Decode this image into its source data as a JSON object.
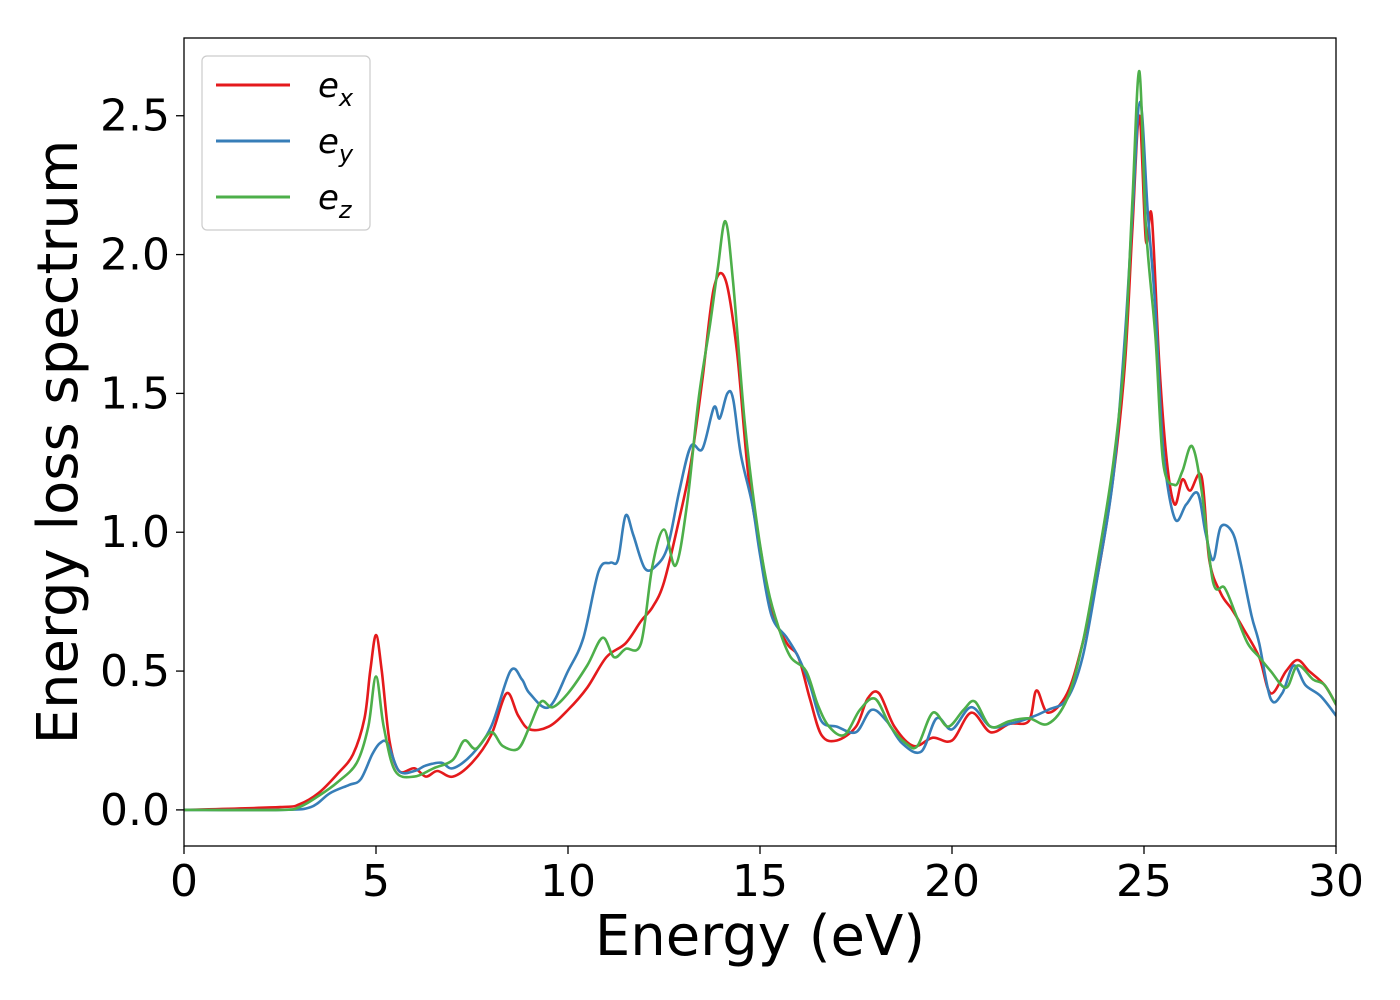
{
  "chart_data": {
    "type": "line",
    "title": "",
    "xlabel": "Energy (eV)",
    "ylabel": "Energy loss spectrum",
    "xlim": [
      0,
      30
    ],
    "ylim": [
      -0.13,
      2.78
    ],
    "xticks": [
      0,
      5,
      10,
      15,
      20,
      25,
      30
    ],
    "xtick_labels": [
      "0",
      "5",
      "10",
      "15",
      "20",
      "25",
      "30"
    ],
    "yticks": [
      0.0,
      0.5,
      1.0,
      1.5,
      2.0,
      2.5
    ],
    "ytick_labels": [
      "0.0",
      "0.5",
      "1.0",
      "1.5",
      "2.0",
      "2.5"
    ],
    "grid": false,
    "legend_position": "top-left",
    "series": [
      {
        "name": "e_x",
        "legend": {
          "base": "e",
          "sub": "x"
        },
        "color": "#e41a1c",
        "points": [
          [
            0,
            0
          ],
          [
            2.5,
            0.01
          ],
          [
            3.0,
            0.02
          ],
          [
            3.5,
            0.06
          ],
          [
            4.0,
            0.13
          ],
          [
            4.4,
            0.2
          ],
          [
            4.7,
            0.33
          ],
          [
            4.85,
            0.5
          ],
          [
            5.0,
            0.63
          ],
          [
            5.15,
            0.5
          ],
          [
            5.35,
            0.25
          ],
          [
            5.6,
            0.14
          ],
          [
            6.0,
            0.15
          ],
          [
            6.3,
            0.12
          ],
          [
            6.6,
            0.14
          ],
          [
            7.0,
            0.12
          ],
          [
            7.5,
            0.17
          ],
          [
            8.0,
            0.27
          ],
          [
            8.4,
            0.42
          ],
          [
            8.7,
            0.34
          ],
          [
            9.0,
            0.29
          ],
          [
            9.5,
            0.3
          ],
          [
            10.0,
            0.36
          ],
          [
            10.5,
            0.44
          ],
          [
            11.0,
            0.55
          ],
          [
            11.5,
            0.6
          ],
          [
            11.9,
            0.68
          ],
          [
            12.2,
            0.73
          ],
          [
            12.5,
            0.82
          ],
          [
            12.9,
            1.05
          ],
          [
            13.2,
            1.25
          ],
          [
            13.5,
            1.55
          ],
          [
            13.8,
            1.88
          ],
          [
            14.1,
            1.91
          ],
          [
            14.4,
            1.65
          ],
          [
            14.7,
            1.2
          ],
          [
            15.0,
            0.95
          ],
          [
            15.3,
            0.72
          ],
          [
            15.7,
            0.6
          ],
          [
            16.0,
            0.55
          ],
          [
            16.3,
            0.4
          ],
          [
            16.6,
            0.27
          ],
          [
            17.0,
            0.25
          ],
          [
            17.5,
            0.3
          ],
          [
            17.8,
            0.4
          ],
          [
            18.1,
            0.42
          ],
          [
            18.5,
            0.3
          ],
          [
            19.0,
            0.23
          ],
          [
            19.5,
            0.26
          ],
          [
            20.0,
            0.25
          ],
          [
            20.5,
            0.35
          ],
          [
            21.0,
            0.28
          ],
          [
            21.5,
            0.31
          ],
          [
            22.0,
            0.32
          ],
          [
            22.2,
            0.43
          ],
          [
            22.5,
            0.35
          ],
          [
            23.0,
            0.42
          ],
          [
            23.4,
            0.6
          ],
          [
            23.8,
            0.85
          ],
          [
            24.2,
            1.2
          ],
          [
            24.5,
            1.6
          ],
          [
            24.7,
            2.1
          ],
          [
            24.88,
            2.5
          ],
          [
            25.05,
            2.05
          ],
          [
            25.2,
            2.14
          ],
          [
            25.4,
            1.6
          ],
          [
            25.6,
            1.25
          ],
          [
            25.8,
            1.1
          ],
          [
            26.0,
            1.19
          ],
          [
            26.2,
            1.15
          ],
          [
            26.5,
            1.2
          ],
          [
            26.7,
            0.9
          ],
          [
            27.0,
            0.78
          ],
          [
            27.3,
            0.72
          ],
          [
            27.6,
            0.65
          ],
          [
            28.0,
            0.55
          ],
          [
            28.3,
            0.42
          ],
          [
            28.7,
            0.5
          ],
          [
            29.0,
            0.54
          ],
          [
            29.3,
            0.5
          ],
          [
            29.7,
            0.45
          ],
          [
            30.0,
            0.38
          ]
        ]
      },
      {
        "name": "e_y",
        "legend": {
          "base": "e",
          "sub": "y"
        },
        "color": "#377eb8",
        "points": [
          [
            0,
            0
          ],
          [
            2.5,
            0.0
          ],
          [
            3.3,
            0.01
          ],
          [
            3.8,
            0.06
          ],
          [
            4.3,
            0.09
          ],
          [
            4.6,
            0.11
          ],
          [
            4.9,
            0.2
          ],
          [
            5.1,
            0.24
          ],
          [
            5.3,
            0.24
          ],
          [
            5.6,
            0.14
          ],
          [
            6.0,
            0.14
          ],
          [
            6.3,
            0.16
          ],
          [
            6.7,
            0.17
          ],
          [
            7.0,
            0.15
          ],
          [
            7.5,
            0.2
          ],
          [
            8.0,
            0.3
          ],
          [
            8.5,
            0.5
          ],
          [
            8.8,
            0.47
          ],
          [
            9.0,
            0.42
          ],
          [
            9.5,
            0.37
          ],
          [
            10.0,
            0.5
          ],
          [
            10.4,
            0.62
          ],
          [
            10.8,
            0.86
          ],
          [
            11.1,
            0.89
          ],
          [
            11.3,
            0.9
          ],
          [
            11.5,
            1.06
          ],
          [
            11.7,
            0.99
          ],
          [
            12.0,
            0.87
          ],
          [
            12.3,
            0.88
          ],
          [
            12.6,
            0.95
          ],
          [
            12.9,
            1.15
          ],
          [
            13.2,
            1.31
          ],
          [
            13.5,
            1.3
          ],
          [
            13.8,
            1.45
          ],
          [
            13.95,
            1.41
          ],
          [
            14.15,
            1.5
          ],
          [
            14.3,
            1.48
          ],
          [
            14.5,
            1.28
          ],
          [
            14.8,
            1.1
          ],
          [
            15.0,
            0.92
          ],
          [
            15.3,
            0.7
          ],
          [
            15.7,
            0.62
          ],
          [
            16.0,
            0.55
          ],
          [
            16.3,
            0.45
          ],
          [
            16.6,
            0.32
          ],
          [
            17.0,
            0.3
          ],
          [
            17.5,
            0.28
          ],
          [
            17.9,
            0.36
          ],
          [
            18.3,
            0.32
          ],
          [
            18.7,
            0.24
          ],
          [
            19.2,
            0.21
          ],
          [
            19.6,
            0.33
          ],
          [
            20.0,
            0.29
          ],
          [
            20.5,
            0.37
          ],
          [
            21.0,
            0.3
          ],
          [
            21.5,
            0.31
          ],
          [
            22.0,
            0.33
          ],
          [
            22.5,
            0.36
          ],
          [
            23.0,
            0.4
          ],
          [
            23.4,
            0.55
          ],
          [
            23.8,
            0.85
          ],
          [
            24.2,
            1.2
          ],
          [
            24.5,
            1.7
          ],
          [
            24.7,
            2.15
          ],
          [
            24.9,
            2.55
          ],
          [
            25.1,
            2.15
          ],
          [
            25.3,
            1.8
          ],
          [
            25.5,
            1.3
          ],
          [
            25.8,
            1.05
          ],
          [
            26.1,
            1.1
          ],
          [
            26.4,
            1.14
          ],
          [
            26.6,
            1.0
          ],
          [
            26.8,
            0.9
          ],
          [
            27.0,
            1.02
          ],
          [
            27.3,
            1.0
          ],
          [
            27.5,
            0.9
          ],
          [
            27.8,
            0.7
          ],
          [
            28.0,
            0.6
          ],
          [
            28.3,
            0.4
          ],
          [
            28.6,
            0.42
          ],
          [
            28.9,
            0.52
          ],
          [
            29.2,
            0.45
          ],
          [
            29.6,
            0.41
          ],
          [
            30.0,
            0.34
          ]
        ]
      },
      {
        "name": "e_z",
        "legend": {
          "base": "e",
          "sub": "z"
        },
        "color": "#4daf4a",
        "points": [
          [
            0,
            0
          ],
          [
            2.5,
            0.0
          ],
          [
            3.0,
            0.01
          ],
          [
            3.5,
            0.05
          ],
          [
            4.0,
            0.1
          ],
          [
            4.5,
            0.17
          ],
          [
            4.8,
            0.3
          ],
          [
            5.0,
            0.48
          ],
          [
            5.2,
            0.3
          ],
          [
            5.5,
            0.14
          ],
          [
            6.0,
            0.12
          ],
          [
            6.5,
            0.15
          ],
          [
            7.0,
            0.18
          ],
          [
            7.3,
            0.25
          ],
          [
            7.6,
            0.22
          ],
          [
            8.0,
            0.28
          ],
          [
            8.3,
            0.23
          ],
          [
            8.7,
            0.22
          ],
          [
            9.0,
            0.3
          ],
          [
            9.3,
            0.39
          ],
          [
            9.6,
            0.37
          ],
          [
            10.0,
            0.42
          ],
          [
            10.5,
            0.52
          ],
          [
            10.9,
            0.62
          ],
          [
            11.2,
            0.55
          ],
          [
            11.5,
            0.58
          ],
          [
            11.9,
            0.6
          ],
          [
            12.2,
            0.88
          ],
          [
            12.5,
            1.01
          ],
          [
            12.8,
            0.88
          ],
          [
            13.1,
            1.1
          ],
          [
            13.4,
            1.48
          ],
          [
            13.7,
            1.75
          ],
          [
            13.9,
            1.95
          ],
          [
            14.1,
            2.12
          ],
          [
            14.3,
            1.9
          ],
          [
            14.6,
            1.4
          ],
          [
            14.9,
            1.05
          ],
          [
            15.2,
            0.8
          ],
          [
            15.5,
            0.65
          ],
          [
            15.8,
            0.55
          ],
          [
            16.2,
            0.5
          ],
          [
            16.5,
            0.38
          ],
          [
            16.8,
            0.3
          ],
          [
            17.2,
            0.27
          ],
          [
            17.6,
            0.36
          ],
          [
            18.0,
            0.4
          ],
          [
            18.4,
            0.3
          ],
          [
            18.8,
            0.24
          ],
          [
            19.1,
            0.23
          ],
          [
            19.5,
            0.35
          ],
          [
            19.9,
            0.3
          ],
          [
            20.3,
            0.36
          ],
          [
            20.6,
            0.39
          ],
          [
            21.0,
            0.3
          ],
          [
            21.5,
            0.32
          ],
          [
            22.0,
            0.33
          ],
          [
            22.5,
            0.31
          ],
          [
            23.0,
            0.4
          ],
          [
            23.4,
            0.6
          ],
          [
            23.8,
            0.9
          ],
          [
            24.2,
            1.25
          ],
          [
            24.5,
            1.65
          ],
          [
            24.7,
            2.2
          ],
          [
            24.88,
            2.66
          ],
          [
            25.05,
            2.1
          ],
          [
            25.3,
            1.7
          ],
          [
            25.5,
            1.25
          ],
          [
            25.8,
            1.17
          ],
          [
            26.0,
            1.22
          ],
          [
            26.25,
            1.31
          ],
          [
            26.5,
            1.15
          ],
          [
            26.8,
            0.82
          ],
          [
            27.1,
            0.8
          ],
          [
            27.4,
            0.7
          ],
          [
            27.7,
            0.6
          ],
          [
            28.0,
            0.55
          ],
          [
            28.3,
            0.5
          ],
          [
            28.7,
            0.44
          ],
          [
            29.0,
            0.52
          ],
          [
            29.4,
            0.47
          ],
          [
            29.7,
            0.45
          ],
          [
            30.0,
            0.38
          ]
        ]
      }
    ]
  }
}
